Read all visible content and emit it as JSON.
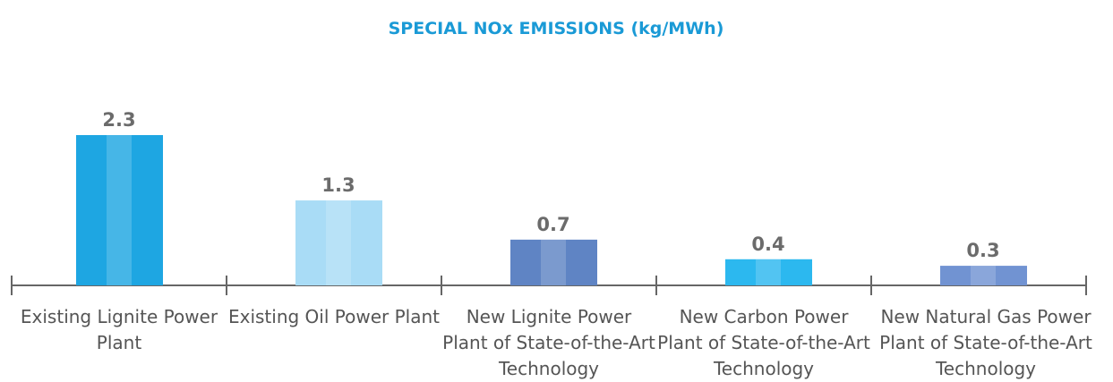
{
  "chart_data": {
    "type": "bar",
    "title": "SPECIAL NOx EMISSIONS (kg/MWh)",
    "categories": [
      "Existing Lignite Power Plant",
      "Existing Oil Power Plant",
      "New Lignite Power Plant of State-of-the-Art Technology",
      "New Carbon Power Plant of State-of-the-Art Technology",
      "New Natural Gas Power Plant of State-of-the-Art Technology"
    ],
    "values": [
      2.3,
      1.3,
      0.7,
      0.4,
      0.3
    ],
    "colors": [
      "#1ea6e2",
      "#a9dcf6",
      "#5f84c4",
      "#2cb8ef",
      "#7193d2"
    ]
  }
}
